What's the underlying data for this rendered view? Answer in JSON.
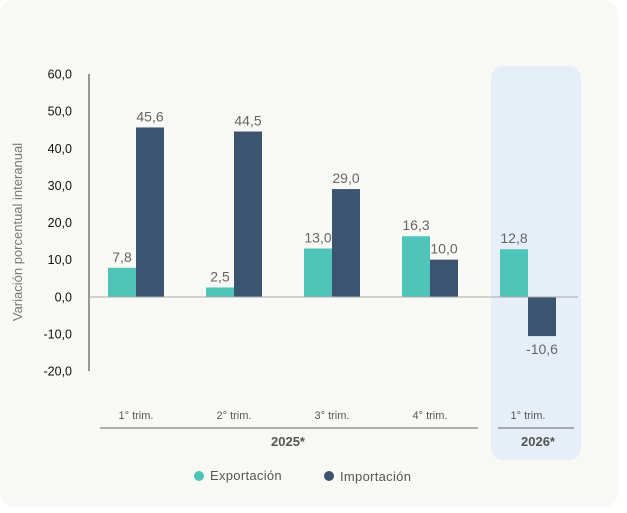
{
  "chart_data": {
    "type": "bar",
    "ylabel": "Variación porcentual interanual",
    "ylim": [
      -20,
      60
    ],
    "yticks": [
      "60,0",
      "50,0",
      "40,0",
      "30,0",
      "20,0",
      "10,0",
      "0,0",
      "-10,0",
      "-20,0"
    ],
    "categories": [
      "1° trim.",
      "2° trim.",
      "3° trim.",
      "4° trim.",
      "1° trim."
    ],
    "groups": [
      {
        "label": "2025*",
        "categories": [
          "1° trim.",
          "2° trim.",
          "3° trim.",
          "4° trim."
        ]
      },
      {
        "label": "2026*",
        "categories": [
          "1° trim."
        ],
        "highlighted": true
      }
    ],
    "series": [
      {
        "name": "Exportación",
        "color": "#4fc4b8",
        "values": [
          7.8,
          2.5,
          13.0,
          16.3,
          12.8
        ],
        "labels": [
          "7,8",
          "2,5",
          "13,0",
          "16,3",
          "12,8"
        ]
      },
      {
        "name": "Importación",
        "color": "#3b5470",
        "values": [
          45.6,
          44.5,
          29.0,
          10.0,
          -10.6
        ],
        "labels": [
          "45,6",
          "44,5",
          "29,0",
          "10,0",
          "-10,6"
        ]
      }
    ],
    "grid": false,
    "legend": "bottom-center",
    "highlight_color": "#e6eff8"
  }
}
